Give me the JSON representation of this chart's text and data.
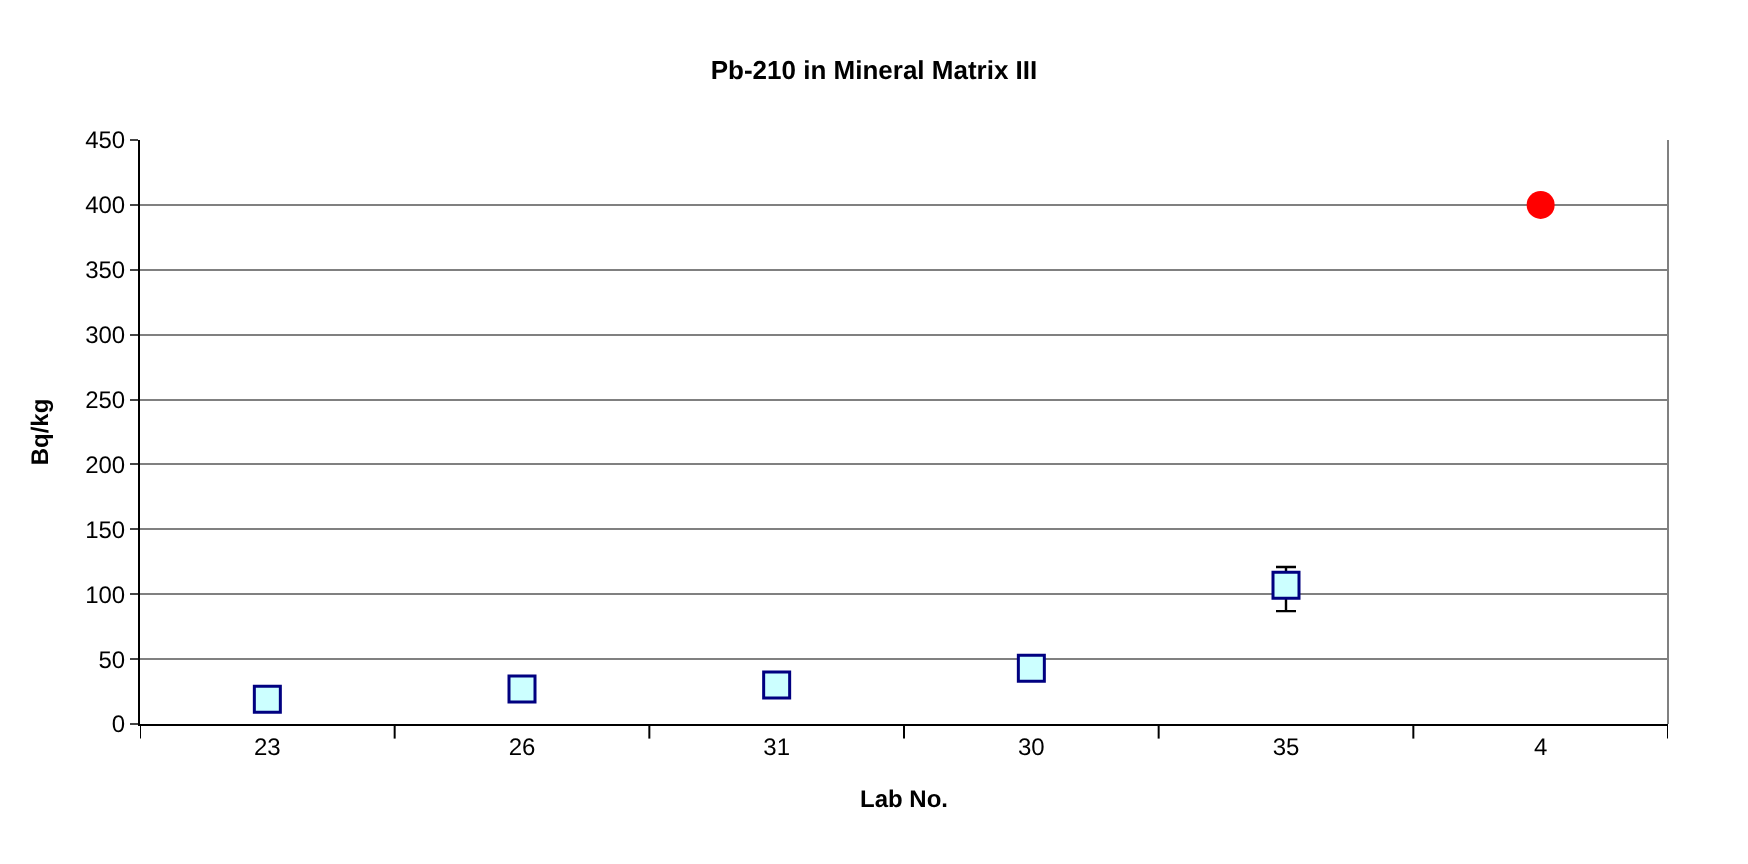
{
  "chart_data": {
    "type": "scatter",
    "title": "Pb-210 in Mineral Matrix III",
    "xlabel": "Lab No.",
    "ylabel": "Bq/kg",
    "categories": [
      "23",
      "26",
      "31",
      "30",
      "35",
      "4"
    ],
    "series": [
      {
        "color": "#ccffff",
        "marker": "square",
        "values": [
          19,
          27,
          30,
          43,
          107,
          null
        ],
        "errors": [
          null,
          null,
          null,
          null,
          [
            87,
            121
          ],
          null
        ]
      },
      {
        "color": "#ff0000",
        "marker": "circle",
        "values": [
          null,
          null,
          null,
          null,
          null,
          400
        ]
      }
    ],
    "ylim": [
      0,
      450
    ],
    "yticks": [
      0,
      50,
      100,
      150,
      200,
      250,
      300,
      350,
      400,
      450
    ],
    "grid": "y"
  }
}
